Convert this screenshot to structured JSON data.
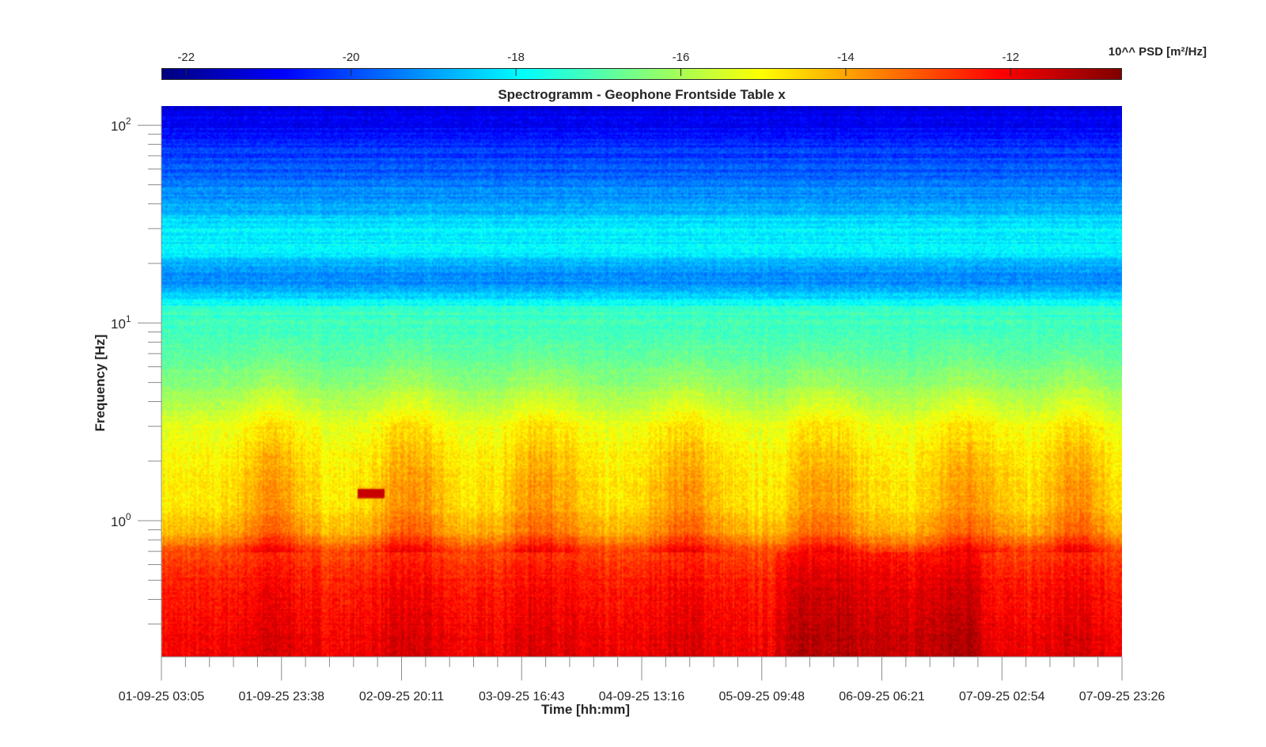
{
  "chart_data": {
    "type": "heatmap",
    "title": "Spectrogramm - Geophone Frontside Table x",
    "xlabel": "Time [hh:mm]",
    "ylabel": "Frequency [Hz]",
    "yscale": "log",
    "ylim": [
      0.205,
      125
    ],
    "y_ticks": [
      {
        "value": 1,
        "label": "10^0"
      },
      {
        "value": 10,
        "label": "10^1"
      },
      {
        "value": 100,
        "label": "10^2"
      }
    ],
    "x_tick_labels": [
      "01-09-25 03:05",
      "01-09-25 23:38",
      "02-09-25 20:11",
      "03-09-25 16:43",
      "04-09-25 13:16",
      "05-09-25 09:48",
      "06-09-25 06:21",
      "07-09-25 02:54",
      "07-09-25 23:26"
    ],
    "x_range_hours": [
      0,
      164.35
    ],
    "colormap": "jet",
    "colorbar": {
      "label": "10^^ PSD [m²/Hz]",
      "clim": [
        -22.3,
        -10.65
      ],
      "ticks": [
        -22,
        -20,
        -18,
        -16,
        -14,
        -12
      ],
      "tick_labels": [
        "-22",
        "-20",
        "-18",
        "-16",
        "-14",
        "-12"
      ]
    },
    "mean_log_psd_profile": {
      "frequency_hz": [
        0.2,
        0.3,
        0.5,
        0.7,
        0.9,
        1.2,
        2,
        3,
        5,
        8,
        11.5,
        14,
        17,
        22,
        30,
        40,
        60,
        90,
        125
      ],
      "log10_psd": [
        -12.0,
        -12.2,
        -12.5,
        -13.0,
        -14.3,
        -14.8,
        -15.0,
        -15.3,
        -16.4,
        -17.1,
        -17.3,
        -18.6,
        -19.4,
        -18.2,
        -18.0,
        -19.0,
        -19.8,
        -20.6,
        -21.4
      ]
    },
    "activity_periods_hours": [
      [
        12,
        26
      ],
      [
        35,
        50
      ],
      [
        57,
        73
      ],
      [
        82,
        97
      ],
      [
        106,
        121
      ],
      [
        130,
        146
      ],
      [
        150,
        163
      ]
    ]
  }
}
